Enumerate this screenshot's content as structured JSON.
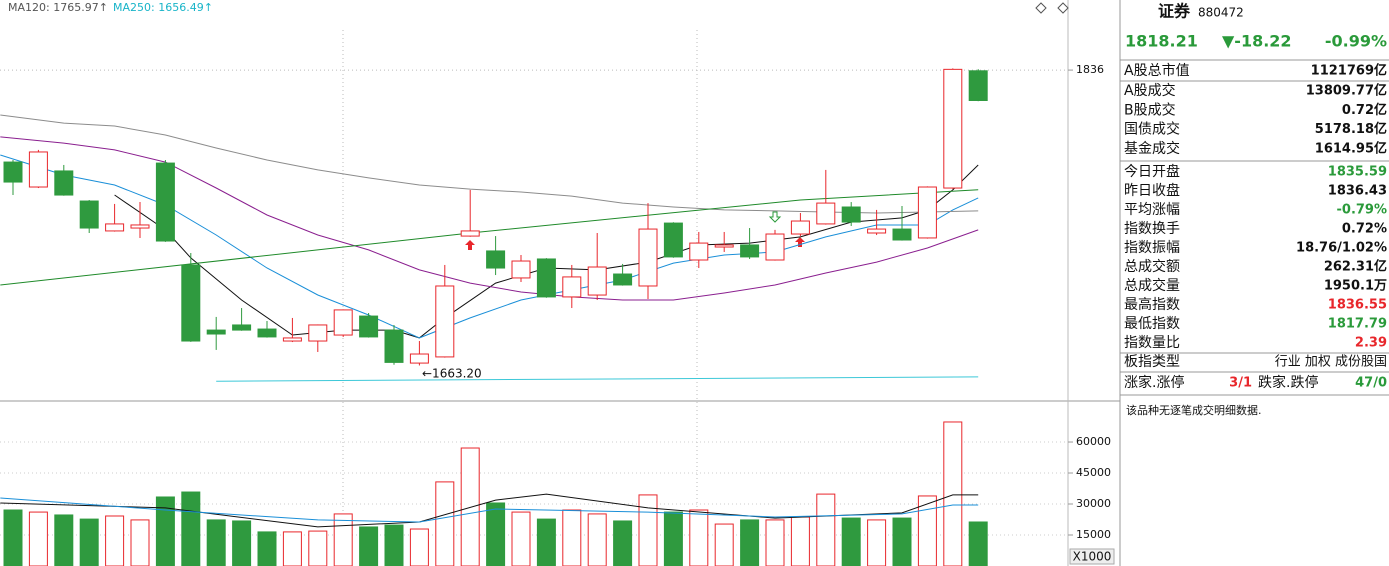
{
  "chart_data": [
    {
      "type": "candlestick",
      "ma_labels": [
        {
          "text": "MA120: 1765.97↑",
          "color": "#555555"
        },
        {
          "text": "MA250: 1656.49↑",
          "color": "#18b4c8"
        }
      ],
      "open": [
        1782.2,
        1767.6,
        1777.0,
        1759.4,
        1741.9,
        1743.6,
        1781.6,
        1722.0,
        1683.9,
        1686.9,
        1684.5,
        1677.5,
        1677.5,
        1681.0,
        1692.1,
        1683.9,
        1664.6,
        1668.2,
        1738.9,
        1730.2,
        1714.4,
        1725.5,
        1703.3,
        1704.4,
        1716.7,
        1709.7,
        1746.5,
        1724.9,
        1732.5,
        1733.7,
        1724.9,
        1740.1,
        1746.0,
        1755.9,
        1740.7,
        1743.0,
        1737.8,
        1767.0,
        1835.59
      ],
      "high": [
        1783.4,
        1789.3,
        1780.5,
        1760.0,
        1757.7,
        1758.8,
        1783.4,
        1729.0,
        1691.6,
        1696.8,
        1689.2,
        1691.0,
        1687.2,
        1696.0,
        1693.9,
        1686.9,
        1677.5,
        1722.0,
        1765.9,
        1738.9,
        1727.8,
        1726.0,
        1722.0,
        1740.7,
        1722.6,
        1758.2,
        1747.0,
        1741.3,
        1741.3,
        1743.6,
        1742.5,
        1752.4,
        1777.6,
        1758.8,
        1754.2,
        1756.5,
        1768.0,
        1837.0,
        1836.55
      ],
      "low": [
        1762.9,
        1767.0,
        1762.5,
        1740.7,
        1741.5,
        1737.8,
        1735.5,
        1677.0,
        1672.3,
        1683.5,
        1679.5,
        1676.9,
        1671.1,
        1679.9,
        1679.5,
        1663.6,
        1663.2,
        1667.8,
        1738.5,
        1716.1,
        1712.0,
        1702.8,
        1696.8,
        1701.5,
        1709.9,
        1702.1,
        1726.2,
        1720.2,
        1729.6,
        1725.5,
        1724.5,
        1738.9,
        1745.6,
        1744.8,
        1739.5,
        1736.2,
        1737.4,
        1766.5,
        1817.79
      ],
      "close": [
        1770.5,
        1788.1,
        1762.9,
        1743.6,
        1746.0,
        1745.4,
        1736.0,
        1677.5,
        1681.6,
        1683.9,
        1679.9,
        1679.3,
        1686.9,
        1695.7,
        1679.9,
        1665.0,
        1669.9,
        1709.7,
        1741.9,
        1720.2,
        1724.3,
        1703.3,
        1715.0,
        1720.8,
        1710.3,
        1743.0,
        1726.7,
        1734.8,
        1733.7,
        1726.7,
        1740.1,
        1747.7,
        1758.2,
        1747.1,
        1743.0,
        1736.6,
        1767.6,
        1836.43,
        1818.21
      ],
      "up_color": "#e8262b",
      "down_color": "#2f9a3f",
      "lines": [
        {
          "color": "#111111",
          "x": [
            4,
            6,
            7,
            9,
            11,
            13,
            15,
            16,
            17,
            19,
            21,
            23,
            25,
            27,
            29,
            31,
            33,
            35,
            36,
            37,
            38
          ],
          "values": [
            1762.9,
            1742.5,
            1726.1,
            1701.5,
            1681.0,
            1683.9,
            1683.9,
            1679.3,
            1691.0,
            1711.4,
            1720.2,
            1719.1,
            1723.7,
            1733.7,
            1734.8,
            1738.4,
            1747.1,
            1749.5,
            1754.2,
            1765.9,
            1780.5
          ]
        },
        {
          "color": "#1a8fd8",
          "x": [
            -0.5,
            2,
            4,
            6,
            8,
            10,
            12,
            14,
            16,
            18,
            20,
            22,
            24,
            26,
            28,
            30,
            32,
            34,
            36,
            37,
            38
          ],
          "values": [
            1786.3,
            1774.6,
            1768.8,
            1757.1,
            1739.5,
            1720.2,
            1704.4,
            1692.7,
            1679.3,
            1691.0,
            1701.5,
            1707.4,
            1713.2,
            1723.1,
            1727.8,
            1729.6,
            1738.4,
            1745.4,
            1745.4,
            1754.2,
            1761.2
          ]
        },
        {
          "color": "#8a1f8f",
          "x": [
            -0.5,
            2,
            4,
            6,
            8,
            10,
            12,
            14,
            16,
            18,
            20,
            22,
            24,
            26,
            28,
            30,
            32,
            34,
            36,
            38
          ],
          "values": [
            1796.9,
            1793.3,
            1789.3,
            1782.2,
            1767.0,
            1751.2,
            1739.5,
            1730.8,
            1719.1,
            1711.4,
            1706.2,
            1703.3,
            1701.5,
            1701.5,
            1705.6,
            1710.3,
            1717.3,
            1723.7,
            1731.9,
            1742.5
          ]
        },
        {
          "color": "#8c8c8c",
          "x": [
            -0.5,
            2,
            4,
            6,
            8,
            10,
            12,
            14,
            16,
            18,
            20,
            22,
            24,
            26,
            28,
            30,
            32,
            34,
            36,
            38
          ],
          "values": [
            1809.7,
            1805.0,
            1803.3,
            1798.0,
            1790.4,
            1783.4,
            1777.6,
            1772.9,
            1768.8,
            1766.4,
            1764.7,
            1762.3,
            1758.2,
            1755.9,
            1754.2,
            1753.6,
            1753.0,
            1752.4,
            1753.0,
            1753.6
          ]
        },
        {
          "color": "#1f8a2a",
          "x": [
            -0.5,
            18,
            31,
            38
          ],
          "values": [
            1710.3,
            1740.7,
            1760.0,
            1765.97
          ]
        },
        {
          "color": "#3cc8d8",
          "x": [
            8,
            38
          ],
          "values": [
            1654.0,
            1656.49
          ]
        }
      ],
      "annotation": "←1663.20",
      "ylim": [
        1643,
        1877
      ],
      "yticks": [
        1836
      ]
    },
    {
      "type": "bar",
      "values": [
        27100,
        26100,
        24700,
        22700,
        24200,
        22300,
        33400,
        35800,
        22300,
        21800,
        16500,
        16500,
        16900,
        25200,
        18900,
        19800,
        17900,
        40700,
        57100,
        30500,
        26100,
        22700,
        27100,
        25200,
        21800,
        34400,
        26100,
        27100,
        20300,
        22300,
        22300,
        23700,
        34800,
        23200,
        22300,
        23200,
        33900,
        69700,
        21300
      ],
      "lines": [
        {
          "color": "#111111",
          "x": [
            -0.5,
            6,
            12,
            16,
            19,
            21,
            25,
            30,
            35,
            37,
            38
          ],
          "values": [
            30500,
            28100,
            18900,
            21300,
            31900,
            34800,
            28100,
            23200,
            25700,
            34400,
            34400
          ]
        },
        {
          "color": "#1a8fd8",
          "x": [
            -0.5,
            6,
            12,
            16,
            19,
            25,
            30,
            35,
            37,
            38
          ],
          "values": [
            32900,
            27100,
            22300,
            21300,
            27600,
            26100,
            23700,
            25200,
            29500,
            29500
          ]
        }
      ],
      "unit_label": "X1000",
      "ylim": [
        0,
        78400
      ],
      "yticks": [
        15000,
        30000,
        45000,
        60000
      ]
    }
  ],
  "info_panel": {
    "name": "证券",
    "code": "880472",
    "price": "1818.21",
    "change": "▼-18.22",
    "change_pct": "-0.99%",
    "rows": [
      {
        "label": "A股总市值",
        "value": "1121769亿",
        "color": "#111111"
      },
      {
        "label": "A股成交",
        "value": "13809.77亿",
        "color": "#111111"
      },
      {
        "label": "B股成交",
        "value": "0.72亿",
        "color": "#111111"
      },
      {
        "label": "国债成交",
        "value": "5178.18亿",
        "color": "#111111"
      },
      {
        "label": "基金成交",
        "value": "1614.95亿",
        "color": "#111111"
      },
      {
        "label": "今日开盘",
        "value": "1835.59",
        "color": "#2a9a3a"
      },
      {
        "label": "昨日收盘",
        "value": "1836.43",
        "color": "#111111"
      },
      {
        "label": "平均涨幅",
        "value": "-0.79%",
        "color": "#2a9a3a"
      },
      {
        "label": "指数换手",
        "value": "0.72%",
        "color": "#111111"
      },
      {
        "label": "指数振幅",
        "value": "18.76/1.02%",
        "color": "#111111"
      },
      {
        "label": "总成交额",
        "value": "262.31亿",
        "color": "#111111"
      },
      {
        "label": "总成交量",
        "value": "1950.1万",
        "color": "#111111"
      },
      {
        "label": "最高指数",
        "value": "1836.55",
        "color": "#e8262b"
      },
      {
        "label": "最低指数",
        "value": "1817.79",
        "color": "#2a9a3a"
      },
      {
        "label": "指数量比",
        "value": "2.39",
        "color": "#e8262b"
      }
    ],
    "type_label": "板指类型",
    "type_value": "行业 加权 成份股国",
    "rise_label": "涨家.涨停",
    "rise_value": "3/1",
    "fall_label": "跌家.跌停",
    "fall_value": "47/0",
    "note": "该品种无逐笔成交明细数据."
  }
}
